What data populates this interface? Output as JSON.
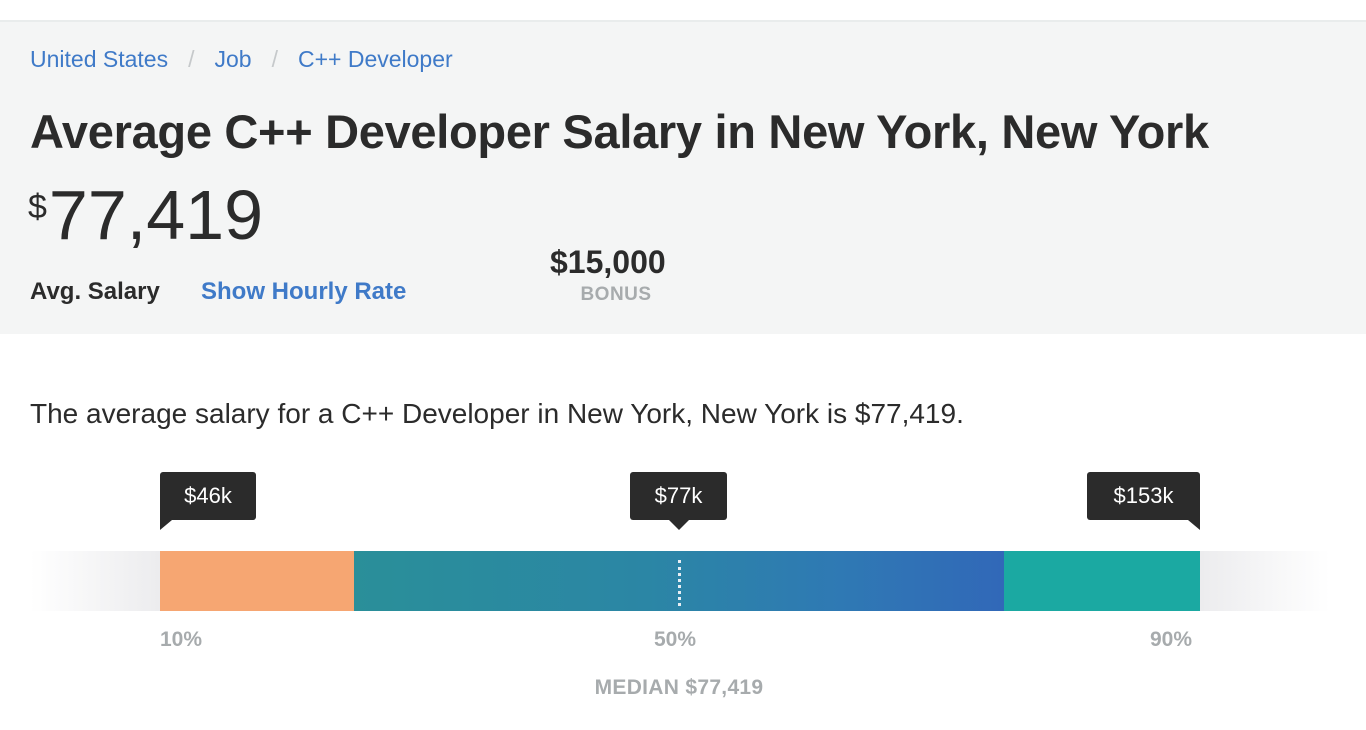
{
  "breadcrumb": {
    "items": [
      "United States",
      "Job",
      "C++ Developer"
    ],
    "separator": "/"
  },
  "header": {
    "title": "Average C++ Developer Salary in New York, New York",
    "avg_currency": "$",
    "avg_value": "77,419",
    "avg_label": "Avg. Salary",
    "hourly_link": "Show Hourly Rate",
    "bonus_value": "$15,000",
    "bonus_label": "BONUS"
  },
  "summary": "The average salary for a C++ Developer in New York, New York is $77,419.",
  "salary_range": {
    "tooltips": {
      "p10": "$46k",
      "p50": "$77k",
      "p90": "$153k"
    },
    "percentiles": {
      "p10": "10%",
      "p50": "50%",
      "p90": "90%"
    },
    "median_label": "MEDIAN $77,419",
    "colors": {
      "low": "#f6a672",
      "mid_start": "#2a8f99",
      "mid_end": "#3168b8",
      "high": "#1ba9a2"
    }
  }
}
